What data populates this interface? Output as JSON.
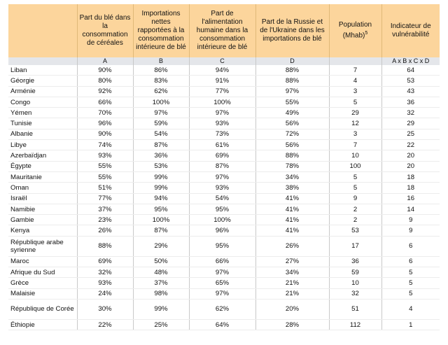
{
  "table": {
    "headers": [
      null,
      "Part du blé dans la consommation de céréales",
      "Importations nettes rapportées à la consommation intérieure de blé",
      "Part de l'alimentation humaine dans la consommation intérieure de blé",
      "Part de la Russie et de l'Ukraine dans les importations de blé",
      {
        "text": "Population (Mhab)",
        "note": "5"
      },
      "Indicateur de vulnérabilité"
    ],
    "letters": [
      null,
      "A",
      "B",
      "C",
      "D",
      null,
      "A x B x C x D"
    ],
    "rows": [
      [
        "Liban",
        "90%",
        "86%",
        "94%",
        "88%",
        "7",
        "64"
      ],
      [
        "Géorgie",
        "80%",
        "83%",
        "91%",
        "88%",
        "4",
        "53"
      ],
      [
        "Arménie",
        "92%",
        "62%",
        "77%",
        "97%",
        "3",
        "43"
      ],
      [
        "Congo",
        "66%",
        "100%",
        "100%",
        "55%",
        "5",
        "36"
      ],
      [
        "Yémen",
        "70%",
        "97%",
        "97%",
        "49%",
        "29",
        "32"
      ],
      [
        "Tunisie",
        "96%",
        "59%",
        "93%",
        "56%",
        "12",
        "29"
      ],
      [
        "Albanie",
        "90%",
        "54%",
        "73%",
        "72%",
        "3",
        "25"
      ],
      [
        "Libye",
        "74%",
        "87%",
        "61%",
        "56%",
        "7",
        "22"
      ],
      [
        "Azerbaïdjan",
        "93%",
        "36%",
        "69%",
        "88%",
        "10",
        "20"
      ],
      [
        "Égypte",
        "55%",
        "53%",
        "87%",
        "78%",
        "100",
        "20"
      ],
      [
        "Mauritanie",
        "55%",
        "99%",
        "97%",
        "34%",
        "5",
        "18"
      ],
      [
        "Oman",
        "51%",
        "99%",
        "93%",
        "38%",
        "5",
        "18"
      ],
      [
        "Israël",
        "77%",
        "94%",
        "54%",
        "41%",
        "9",
        "16"
      ],
      [
        "Namibie",
        "37%",
        "95%",
        "95%",
        "41%",
        "2",
        "14"
      ],
      [
        "Gambie",
        "23%",
        "100%",
        "100%",
        "41%",
        "2",
        "9"
      ],
      [
        "Kenya",
        "26%",
        "87%",
        "96%",
        "41%",
        "53",
        "9"
      ],
      [
        "République arabe syrienne",
        "88%",
        "29%",
        "95%",
        "26%",
        "17",
        "6"
      ],
      [
        "Maroc",
        "69%",
        "50%",
        "66%",
        "27%",
        "36",
        "6"
      ],
      [
        "Afrique du Sud",
        "32%",
        "48%",
        "97%",
        "34%",
        "59",
        "5"
      ],
      [
        "Grèce",
        "93%",
        "37%",
        "65%",
        "21%",
        "10",
        "5"
      ],
      [
        "Malaisie",
        "24%",
        "98%",
        "97%",
        "21%",
        "32",
        "5"
      ],
      [
        "République de Corée",
        "30%",
        "99%",
        "62%",
        "20%",
        "51",
        "4"
      ],
      [
        "Éthiopie",
        "22%",
        "25%",
        "64%",
        "28%",
        "112",
        "1"
      ]
    ]
  }
}
